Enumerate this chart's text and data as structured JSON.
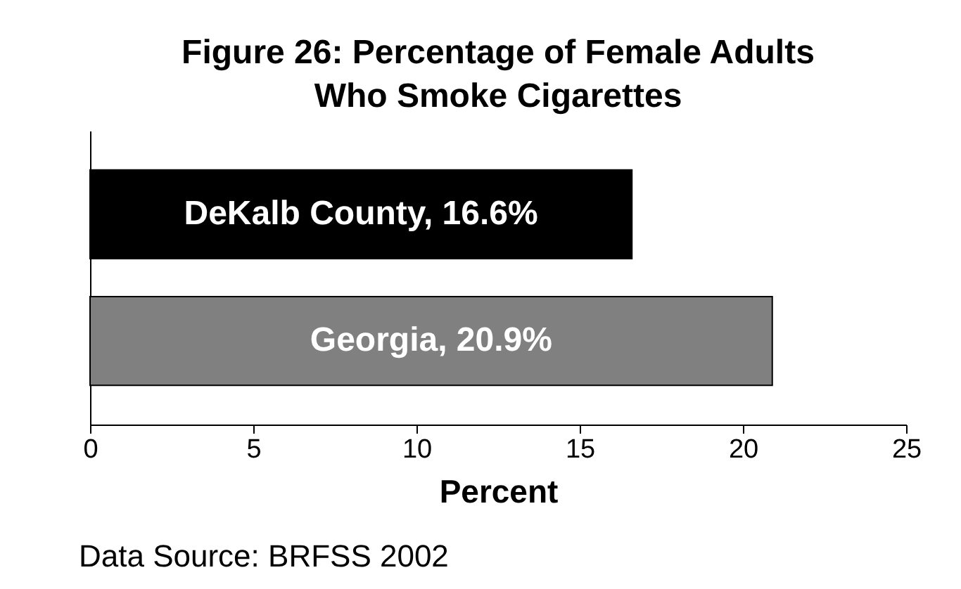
{
  "chart_data": {
    "type": "bar",
    "orientation": "horizontal",
    "title": "Figure 26: Percentage of Female Adults\nWho Smoke Cigarettes",
    "categories": [
      null,
      null
    ],
    "values": [
      16.6,
      20.9
    ],
    "colors": [
      "#000000",
      "#808080"
    ],
    "value_labels": [
      "DeKalb County, 16.6%",
      "Georgia, 20.9%"
    ],
    "xlabel": "Percent",
    "xlim": [
      0,
      25
    ],
    "xticks": [
      0,
      5,
      10,
      15,
      20,
      25
    ],
    "grid": false,
    "annotations": [
      "Data Source: BRFSS 2002"
    ]
  }
}
